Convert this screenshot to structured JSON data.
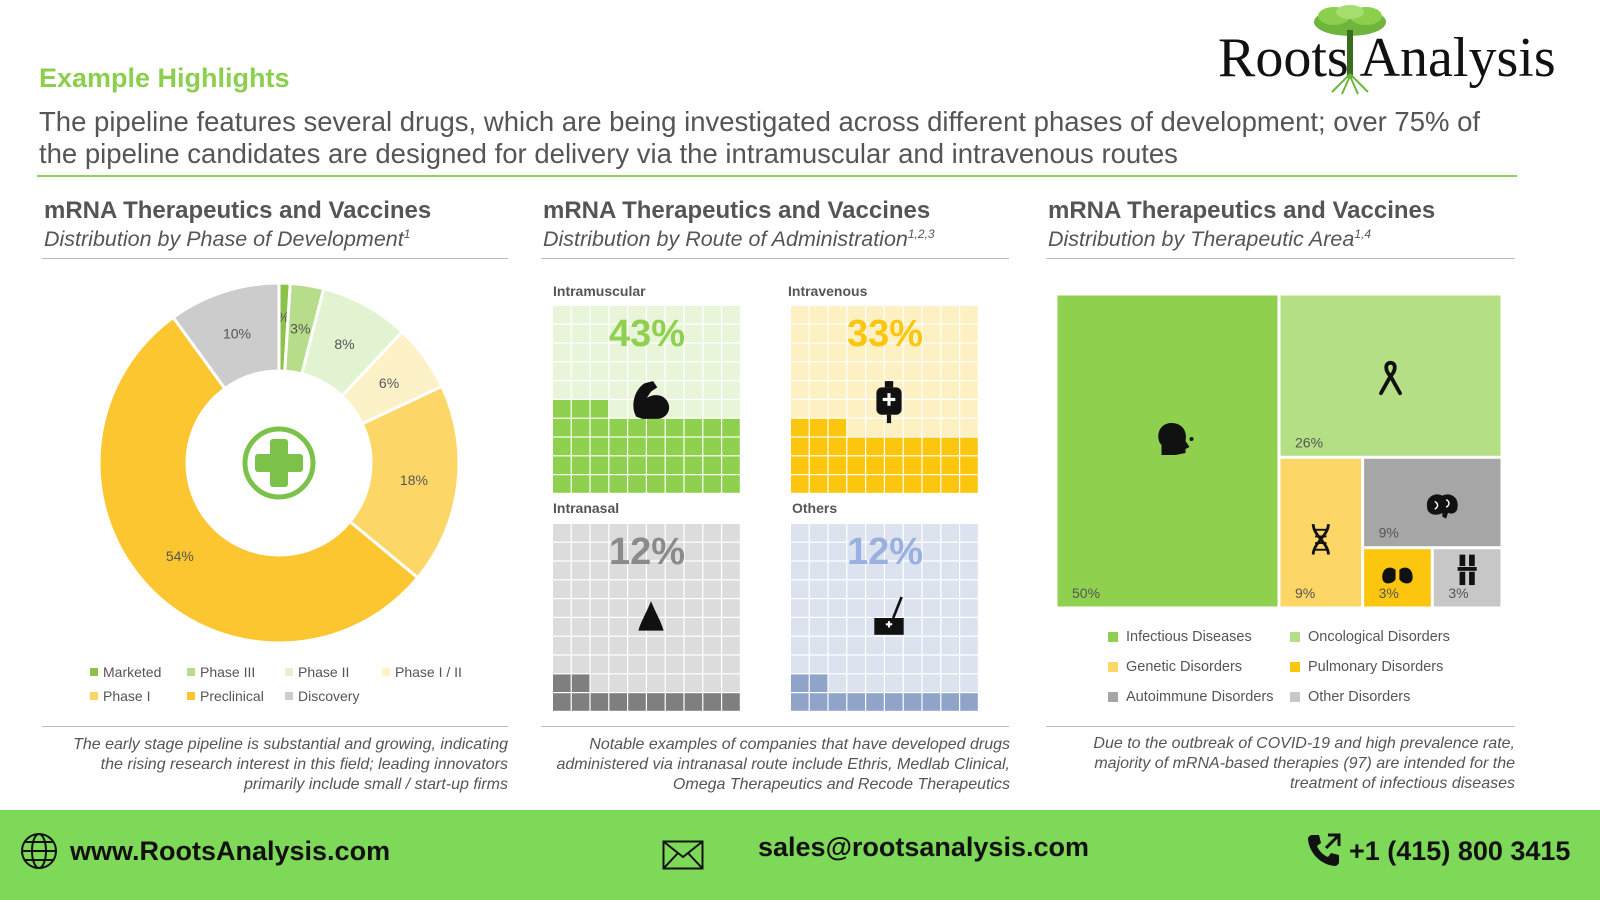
{
  "brand": {
    "name": "Roots Analysis",
    "tree_icon": "tree-logo-icon"
  },
  "header": {
    "kicker": "Example Highlights",
    "headline": "The pipeline features several drugs, which are being investigated across different phases of development; over 75% of the pipeline candidates are designed for delivery via the intramuscular and intravenous routes"
  },
  "panels": [
    {
      "title": "mRNA Therapeutics and Vaccines",
      "subtitle": "Distribution by Phase of Development",
      "superscript": "1"
    },
    {
      "title": "mRNA Therapeutics and Vaccines",
      "subtitle": "Distribution by Route of Administration",
      "superscript": "1,2,3"
    },
    {
      "title": "mRNA Therapeutics and Vaccines",
      "subtitle": "Distribution by Therapeutic Area",
      "superscript": "1,4"
    }
  ],
  "notes": [
    "The early stage pipeline is substantial and growing, indicating the rising research interest in this field; leading innovators primarily include small / start-up firms",
    "Notable examples of companies that have developed drugs administered via intranasal route include Ethris, Medlab Clinical, Omega Therapeutics and Recode Therapeutics",
    "Due to the outbreak of COVID-19 and high prevalence rate, majority of mRNA-based therapies (97) are intended for the treatment of infectious diseases"
  ],
  "footer": {
    "website": "www.RootsAnalysis.com",
    "email": "sales@rootsanalysis.com",
    "phone": "+1 (415) 800 3415",
    "icons": [
      "globe-icon",
      "envelope-icon",
      "phone-icon"
    ]
  },
  "chart_data": [
    {
      "type": "pie",
      "variant": "donut",
      "center_icon": "medical-cross-icon",
      "labels": [
        "Marketed",
        "Phase III",
        "Phase II",
        "Phase I / II",
        "Phase I",
        "Preclinical",
        "Discovery"
      ],
      "values": [
        1,
        3,
        8,
        6,
        18,
        54,
        10
      ],
      "data_labels": [
        "1%",
        "3%",
        "8%",
        "6%",
        "18%",
        "54%",
        "10%"
      ],
      "colors": [
        "#8bc34a",
        "#b5dd8a",
        "#e2f3d2",
        "#fdf1c8",
        "#fcd667",
        "#fbc62f",
        "#cccccc"
      ],
      "legend_placement": "bottom"
    },
    {
      "type": "waffle",
      "categories": [
        {
          "name": "Intramuscular",
          "value": 43,
          "label": "43%",
          "icon": "flexed-arm-icon",
          "fill": "#8fd14f",
          "light": "#e8f5d8",
          "text": "#8fd14f"
        },
        {
          "name": "Intravenous",
          "value": 33,
          "label": "33%",
          "icon": "iv-bag-icon",
          "fill": "#fcc60f",
          "light": "#fdf1c4",
          "text": "#fcc60f"
        },
        {
          "name": "Intranasal",
          "value": 12,
          "label": "12%",
          "icon": "nose-icon",
          "fill": "#7f7f7f",
          "light": "#dcdcdc",
          "text": "#8a8a8a"
        },
        {
          "name": "Others",
          "value": 12,
          "label": "12%",
          "icon": "syringe-kit-icon",
          "fill": "#8fa4c8",
          "light": "#dce3ef",
          "text": "#99b0e0"
        }
      ]
    },
    {
      "type": "treemap",
      "labels": [
        "Infectious Diseases",
        "Oncological Disorders",
        "Genetic Disorders",
        "Pulmonary Disorders",
        "Autoimmune Disorders",
        "Other Disorders"
      ],
      "values": [
        50,
        26,
        9,
        3,
        9,
        3
      ],
      "data_labels": [
        "50%",
        "26%",
        "9%",
        "3%",
        "9%",
        "3%"
      ],
      "colors": [
        "#8fd14f",
        "#b5df85",
        "#fcd667",
        "#fcc60f",
        "#a6a6a6",
        "#c7c7c7"
      ],
      "icons": [
        "head-virus-icon",
        "awareness-ribbon-icon",
        "dna-icon",
        "lungs-icon",
        "brain-icon",
        "knee-joint-icon"
      ],
      "legend_placement": "bottom"
    }
  ]
}
